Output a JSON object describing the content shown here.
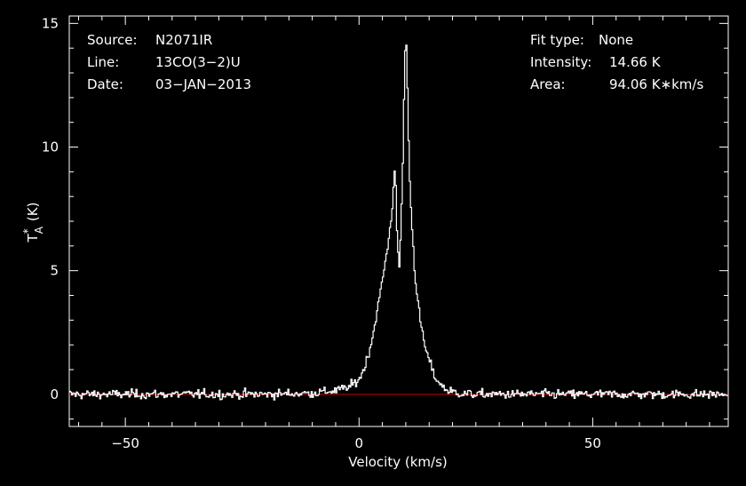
{
  "info_left": {
    "source_label": "Source:",
    "source_value": "N2071IR",
    "line_label": "Line:",
    "line_value": "13CO(3−2)U",
    "date_label": "Date:",
    "date_value": "03−JAN−2013"
  },
  "info_right": {
    "fit_label": "Fit type:",
    "fit_value": "None",
    "intensity_label": "Intensity:",
    "intensity_value": "14.66 K",
    "area_label": "Area:",
    "area_value": "94.06 K∗km/s"
  },
  "colors": {
    "background": "#000000",
    "foreground": "#ffffff",
    "baseline": "#cc0000"
  },
  "chart_data": {
    "type": "line",
    "title": "",
    "xlabel": "Velocity (km/s)",
    "ylabel_main": "T",
    "ylabel_sub": "A",
    "ylabel_sup": "*",
    "ylabel_unit": "(K)",
    "xlim": [
      -62,
      79
    ],
    "ylim": [
      -1.3,
      15.3
    ],
    "x_ticks": [
      -50,
      0,
      50
    ],
    "x_tick_labels": [
      "−50",
      "0",
      "50"
    ],
    "y_ticks": [
      0,
      5,
      10,
      15
    ],
    "y_tick_labels": [
      "0",
      "5",
      "10",
      "15"
    ],
    "baseline_y": 0,
    "series": [
      {
        "line_style": "histogram-step",
        "x": [
          -62,
          -40,
          -20,
          -10,
          -5,
          -2,
          0,
          1,
          2,
          3,
          4,
          5,
          6,
          6.5,
          7,
          7.3,
          7.6,
          7.9,
          8.2,
          8.6,
          9.0,
          9.4,
          9.7,
          10.0,
          10.3,
          10.6,
          11.0,
          11.5,
          12,
          13,
          14,
          15,
          16,
          17,
          18,
          19,
          20,
          22,
          25,
          30,
          40,
          60,
          79
        ],
        "y": [
          0,
          0,
          0,
          0.05,
          0.15,
          0.3,
          0.6,
          1.0,
          1.6,
          2.4,
          3.5,
          4.6,
          5.8,
          6.5,
          7.2,
          8.2,
          9.2,
          8.4,
          5.9,
          5.1,
          6.8,
          9.5,
          12.8,
          14.66,
          13.2,
          10.3,
          8.0,
          6.3,
          4.8,
          3.1,
          2.0,
          1.4,
          0.8,
          0.5,
          0.3,
          0.15,
          0.1,
          0.03,
          0,
          0,
          0,
          0,
          0
        ]
      }
    ],
    "noise_rms": 0.13
  }
}
